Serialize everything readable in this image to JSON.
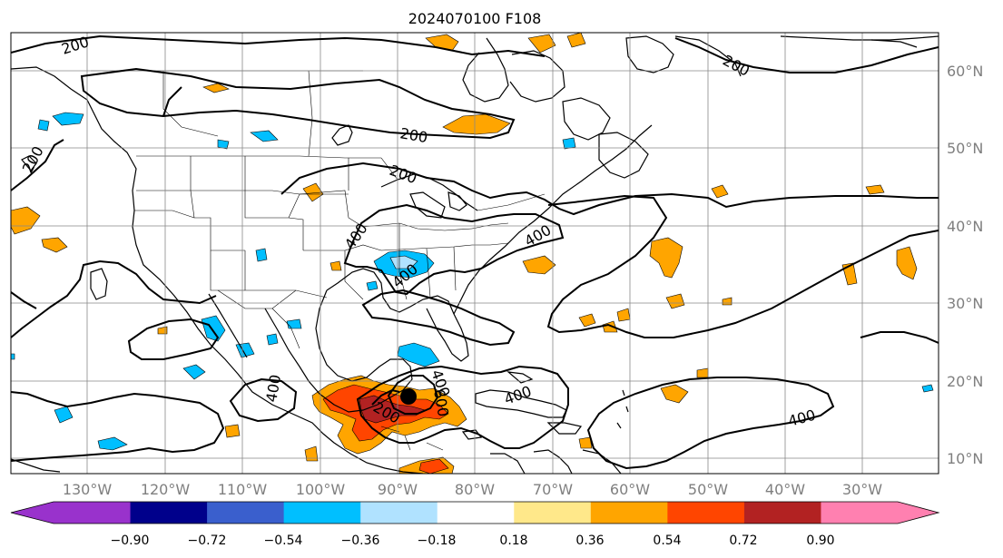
{
  "title": "2024070100 F108",
  "lat_labels": [
    "60°N",
    "50°N",
    "40°N",
    "30°N",
    "20°N",
    "10°N"
  ],
  "lon_labels": [
    "130°W",
    "120°W",
    "110°W",
    "100°W",
    "90°W",
    "80°W",
    "70°W",
    "60°W",
    "50°W",
    "40°W",
    "30°W"
  ],
  "contour_labels": [
    "200",
    "200",
    "200",
    "200",
    "200",
    "400",
    "400",
    "400",
    "400",
    "400",
    "400",
    "400",
    "200",
    "600"
  ],
  "colorbar": {
    "tick_labels": [
      "−0.90",
      "−0.72",
      "−0.54",
      "−0.36",
      "−0.18",
      "0.18",
      "0.36",
      "0.54",
      "0.72",
      "0.90"
    ],
    "under_color": "#9932cc",
    "over_color": "#ff80b0",
    "bin_colors": [
      "#9932cc",
      "#00008b",
      "#3a5fcd",
      "#00bfff",
      "#b0e2ff",
      "#ffffff",
      "#ffe88a",
      "#ffa500",
      "#ff4500",
      "#b22222",
      "#ff80b0"
    ]
  },
  "colors": {
    "gridline": "#888888",
    "coastline": "#000000",
    "contour": "#000000",
    "storm_marker": "#000000"
  }
}
